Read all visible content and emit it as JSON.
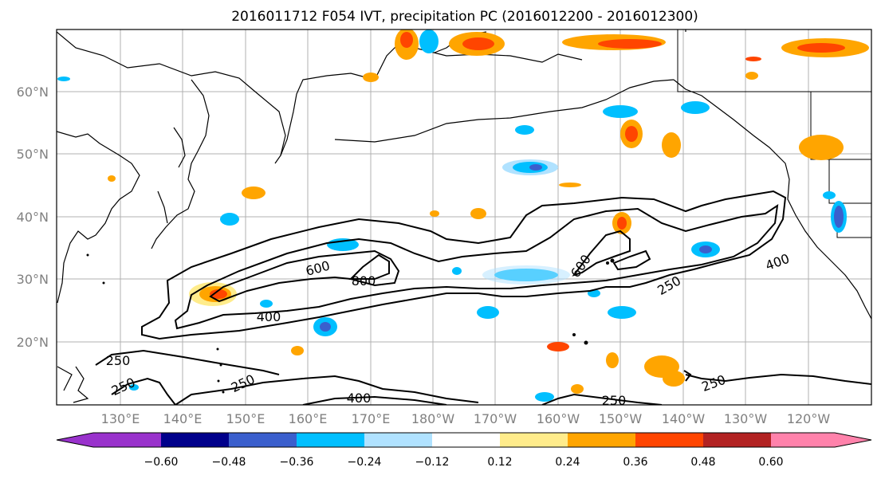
{
  "title": "2016011712 F054 IVT, precipitation PC (2016012200 - 2016012300)",
  "latitude_labels": [
    "20°N",
    "30°N",
    "40°N",
    "50°N",
    "60°N"
  ],
  "longitude_labels": [
    "130°E",
    "140°E",
    "150°E",
    "160°E",
    "170°E",
    "180°W",
    "170°W",
    "160°W",
    "150°W",
    "140°W",
    "130°W",
    "120°W"
  ],
  "ivt_contour_labels": [
    "250",
    "250",
    "250",
    "250",
    "250",
    "250",
    "400",
    "400",
    "400",
    "600",
    "600",
    "800"
  ],
  "colorbar": {
    "colors": [
      "#9932cc",
      "#00008b",
      "#3a5fcd",
      "#00bfff",
      "#b0e2ff",
      "#ffffff",
      "#ffec8b",
      "#ffa500",
      "#ff4500",
      "#b22222",
      "#ff82ab"
    ],
    "tick_labels": [
      "−0.60",
      "−0.48",
      "−0.36",
      "−0.24",
      "−0.12",
      "0.12",
      "0.24",
      "0.36",
      "0.48",
      "0.60"
    ]
  },
  "colors": {
    "positive_light": "#ffec8b",
    "positive_mid": "#ffa500",
    "positive_strong": "#ff4500",
    "negative_light": "#b0e2ff",
    "negative_mid": "#00bfff",
    "negative_strong": "#3a5fcd",
    "contour": "#000000",
    "gridline": "#b0b0b0"
  }
}
